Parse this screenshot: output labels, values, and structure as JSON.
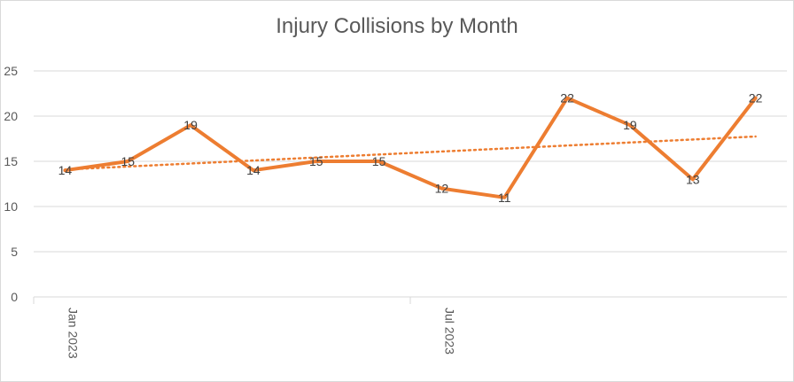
{
  "chart_data": {
    "type": "line",
    "title": "Injury Collisions by Month",
    "xlabel": "",
    "ylabel": "",
    "ylim": [
      0,
      25
    ],
    "yticks": [
      0,
      5,
      10,
      15,
      20,
      25
    ],
    "x": [
      "Jan 2023",
      "Feb 2023",
      "Mar 2023",
      "Apr 2023",
      "May 2023",
      "Jun 2023",
      "Jul 2023",
      "Aug 2023",
      "Sep 2023",
      "Oct 2023",
      "Nov 2023",
      "Dec 2023"
    ],
    "x_tick_labels": [
      {
        "index": 0,
        "label": "Jan 2023"
      },
      {
        "index": 6,
        "label": "Jul 2023"
      }
    ],
    "series": [
      {
        "values": [
          14,
          15,
          19,
          14,
          15,
          15,
          12,
          11,
          22,
          19,
          13,
          22
        ],
        "color": "#ED7D31",
        "data_labels": true
      }
    ],
    "trendline": {
      "type": "linear",
      "style": "dotted",
      "color": "#ED7D31"
    },
    "grid": true,
    "legend": "none"
  }
}
